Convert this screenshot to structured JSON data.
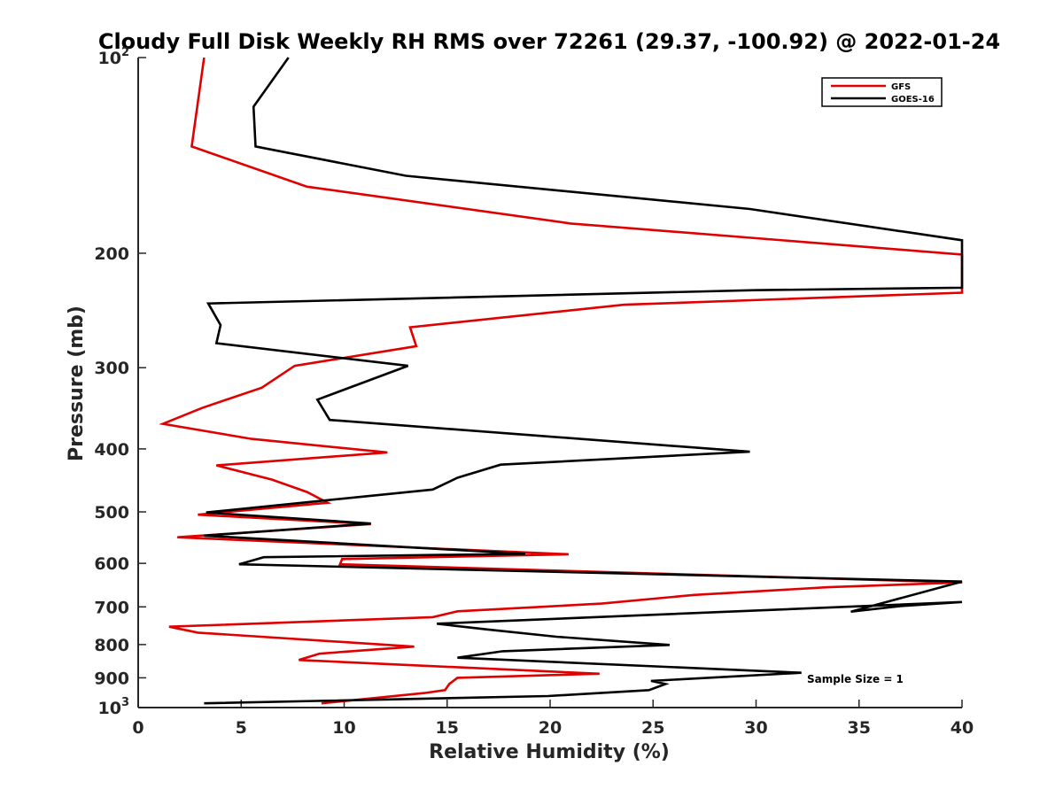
{
  "chart_data": {
    "type": "line",
    "title": "Cloudy Full Disk Weekly RH RMS over 72261 (29.37, -100.92) @ 2022-01-24",
    "xlabel": "Relative Humidity (%)",
    "ylabel": "Pressure (mb)",
    "xlim": [
      0,
      40
    ],
    "ylim": [
      100,
      1000
    ],
    "yscale": "log",
    "yreversed": true,
    "grid": false,
    "xticks": [
      0,
      5,
      10,
      15,
      20,
      25,
      30,
      35,
      40
    ],
    "xtick_labels": [
      "0",
      "5",
      "10",
      "15",
      "20",
      "25",
      "30",
      "35",
      "40"
    ],
    "yticks": [
      {
        "value": 100,
        "label": "10",
        "exp": "2"
      },
      {
        "value": 200,
        "label": "200"
      },
      {
        "value": 300,
        "label": "300"
      },
      {
        "value": 400,
        "label": "400"
      },
      {
        "value": 500,
        "label": "500"
      },
      {
        "value": 600,
        "label": "600"
      },
      {
        "value": 700,
        "label": "700"
      },
      {
        "value": 800,
        "label": "800"
      },
      {
        "value": 900,
        "label": "900"
      },
      {
        "value": 1000,
        "label": "10",
        "exp": "3"
      }
    ],
    "legend_position": "top-right",
    "annotation": "Sample Size = 1",
    "series": [
      {
        "name": "GFS",
        "color": "#e00000",
        "points": [
          [
            3.2,
            100
          ],
          [
            2.6,
            137
          ],
          [
            8.2,
            158
          ],
          [
            21,
            180
          ],
          [
            37.5,
            198
          ],
          [
            40,
            201
          ],
          [
            40,
            230
          ],
          [
            23.6,
            240
          ],
          [
            13.2,
            260
          ],
          [
            13.5,
            278
          ],
          [
            7.6,
            298
          ],
          [
            6,
            322
          ],
          [
            3.1,
            346
          ],
          [
            1.2,
            366
          ],
          [
            5.5,
            386
          ],
          [
            12.1,
            405
          ],
          [
            3.8,
            424
          ],
          [
            6.5,
            446
          ],
          [
            8.2,
            466
          ],
          [
            9.2,
            484
          ],
          [
            2.9,
            505
          ],
          [
            11.3,
            522
          ],
          [
            1.9,
            547
          ],
          [
            20.9,
            581
          ],
          [
            9.9,
            591
          ],
          [
            9.8,
            602
          ],
          [
            40,
            642
          ],
          [
            33.5,
            653
          ],
          [
            27,
            671
          ],
          [
            22.5,
            692
          ],
          [
            15.5,
            711
          ],
          [
            14.3,
            726
          ],
          [
            1.5,
            751
          ],
          [
            2.9,
            767
          ],
          [
            13.4,
            806
          ],
          [
            8.8,
            826
          ],
          [
            7.8,
            845
          ],
          [
            22.4,
            887
          ],
          [
            15.5,
            900
          ],
          [
            15.1,
            920
          ],
          [
            14.9,
            940
          ],
          [
            13.9,
            950
          ],
          [
            8.9,
            985
          ]
        ]
      },
      {
        "name": "GOES-16",
        "color": "#000000",
        "points": [
          [
            7.3,
            100
          ],
          [
            5.6,
            119
          ],
          [
            5.7,
            137
          ],
          [
            13,
            152
          ],
          [
            29.7,
            171
          ],
          [
            40,
            191
          ],
          [
            40,
            226
          ],
          [
            29.9,
            228
          ],
          [
            3.4,
            239
          ],
          [
            4,
            258
          ],
          [
            3.8,
            275
          ],
          [
            13.1,
            298
          ],
          [
            8.7,
            336
          ],
          [
            9.3,
            361
          ],
          [
            29.7,
            404
          ],
          [
            17.6,
            423
          ],
          [
            15.5,
            443
          ],
          [
            14.3,
            462
          ],
          [
            3.3,
            501
          ],
          [
            11.3,
            521
          ],
          [
            3.2,
            544
          ],
          [
            18.8,
            580
          ],
          [
            6.1,
            587
          ],
          [
            4.9,
            602
          ],
          [
            40,
            640
          ],
          [
            34.6,
            712
          ],
          [
            37,
            698
          ],
          [
            40,
            688
          ],
          [
            14.5,
            743
          ],
          [
            16.9,
            758
          ],
          [
            20.3,
            778
          ],
          [
            25.8,
            801
          ],
          [
            17.7,
            819
          ],
          [
            15.5,
            838
          ],
          [
            32.2,
            884
          ],
          [
            24.9,
            910
          ],
          [
            25.6,
            920
          ],
          [
            24.8,
            940
          ],
          [
            19.9,
            960
          ],
          [
            3.2,
            985
          ]
        ]
      }
    ]
  }
}
